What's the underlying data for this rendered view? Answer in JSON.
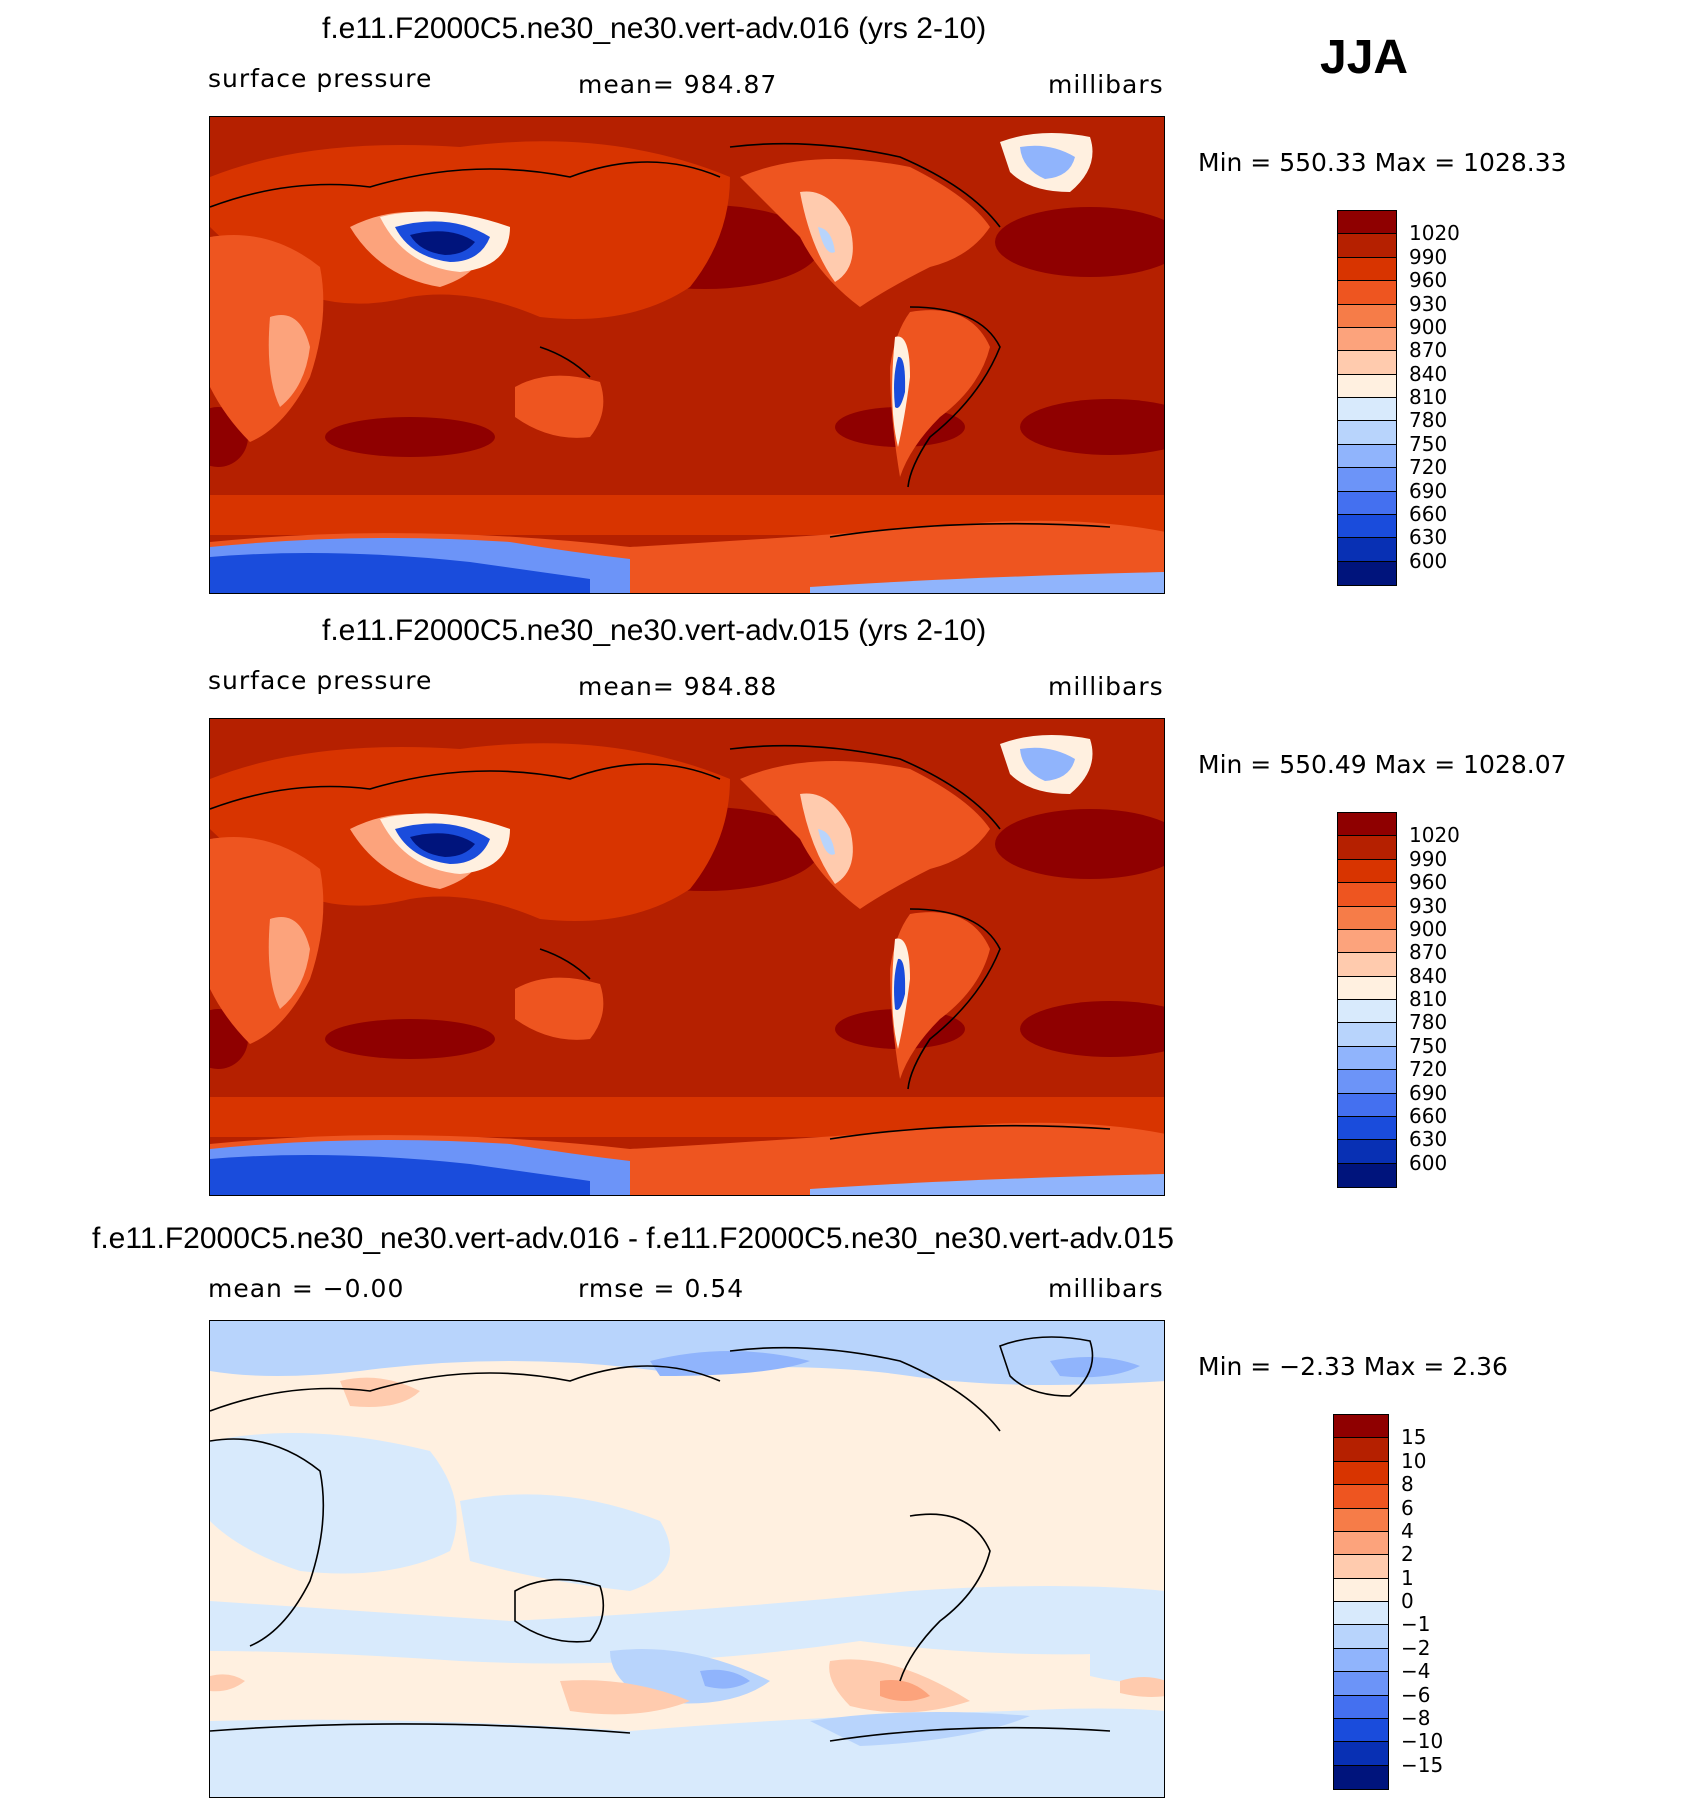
{
  "season": "JJA",
  "panels": [
    {
      "id": "p1",
      "title": "f.e11.F2000C5.ne30_ne30.vert-adv.016 (yrs 2-10)",
      "left_label": "surface pressure",
      "center_label": "mean=  984.87",
      "right_label": "millibars",
      "minmax": "Min  =  550.33  Max  =  1028.33",
      "colorbar": {
        "labels": [
          "1020",
          "990",
          "960",
          "930",
          "900",
          "870",
          "840",
          "810",
          "780",
          "750",
          "720",
          "690",
          "660",
          "630",
          "600"
        ],
        "colors": [
          "#8f0000",
          "#b52000",
          "#d83400",
          "#ee5520",
          "#f67c48",
          "#fca37c",
          "#ffcbae",
          "#fff0e0",
          "#d8eafc",
          "#b8d4fc",
          "#90b4fc",
          "#6c94f8",
          "#4470f0",
          "#1a4cdc",
          "#0830b4",
          "#00147c"
        ]
      }
    },
    {
      "id": "p2",
      "title": "f.e11.F2000C5.ne30_ne30.vert-adv.015 (yrs 2-10)",
      "left_label": "surface pressure",
      "center_label": "mean=  984.88",
      "right_label": "millibars",
      "minmax": "Min  =  550.49  Max  =  1028.07",
      "colorbar": {
        "labels": [
          "1020",
          "990",
          "960",
          "930",
          "900",
          "870",
          "840",
          "810",
          "780",
          "750",
          "720",
          "690",
          "660",
          "630",
          "600"
        ],
        "colors": [
          "#8f0000",
          "#b52000",
          "#d83400",
          "#ee5520",
          "#f67c48",
          "#fca37c",
          "#ffcbae",
          "#fff0e0",
          "#d8eafc",
          "#b8d4fc",
          "#90b4fc",
          "#6c94f8",
          "#4470f0",
          "#1a4cdc",
          "#0830b4",
          "#00147c"
        ]
      }
    },
    {
      "id": "p3",
      "title": "f.e11.F2000C5.ne30_ne30.vert-adv.016 - f.e11.F2000C5.ne30_ne30.vert-adv.015",
      "left_label": "mean  =    −0.00",
      "center_label": "rmse  =     0.54",
      "right_label": "millibars",
      "minmax": "Min  =    −2.33  Max  =      2.36",
      "colorbar": {
        "labels": [
          "15",
          "10",
          "8",
          "6",
          "4",
          "2",
          "1",
          "0",
          "−1",
          "−2",
          "−4",
          "−6",
          "−8",
          "−10",
          "−15"
        ],
        "colors": [
          "#8f0000",
          "#b52000",
          "#d83400",
          "#ee5520",
          "#f67c48",
          "#fca37c",
          "#ffcbae",
          "#fff0e0",
          "#d8eafc",
          "#b8d4fc",
          "#90b4fc",
          "#6c94f8",
          "#4470f0",
          "#1a4cdc",
          "#0830b4",
          "#00147c"
        ]
      }
    }
  ]
}
